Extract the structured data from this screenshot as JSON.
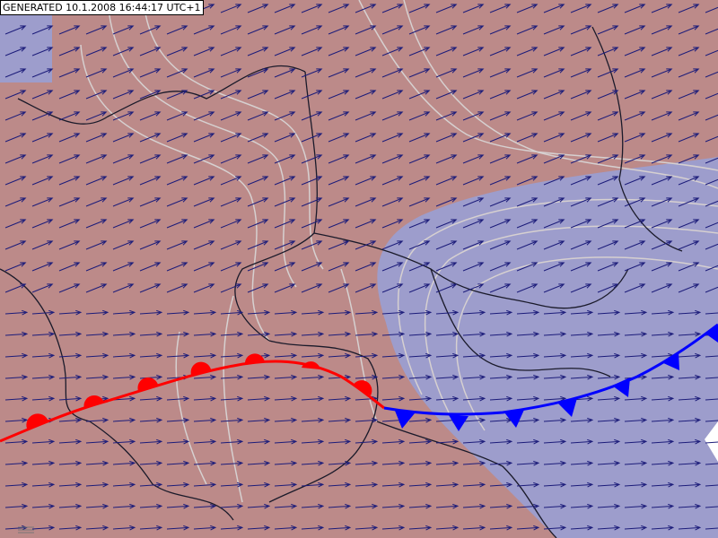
{
  "header": {
    "label": "GENERATED 10.1.2008 16:44:17 UTC+1"
  }
}
